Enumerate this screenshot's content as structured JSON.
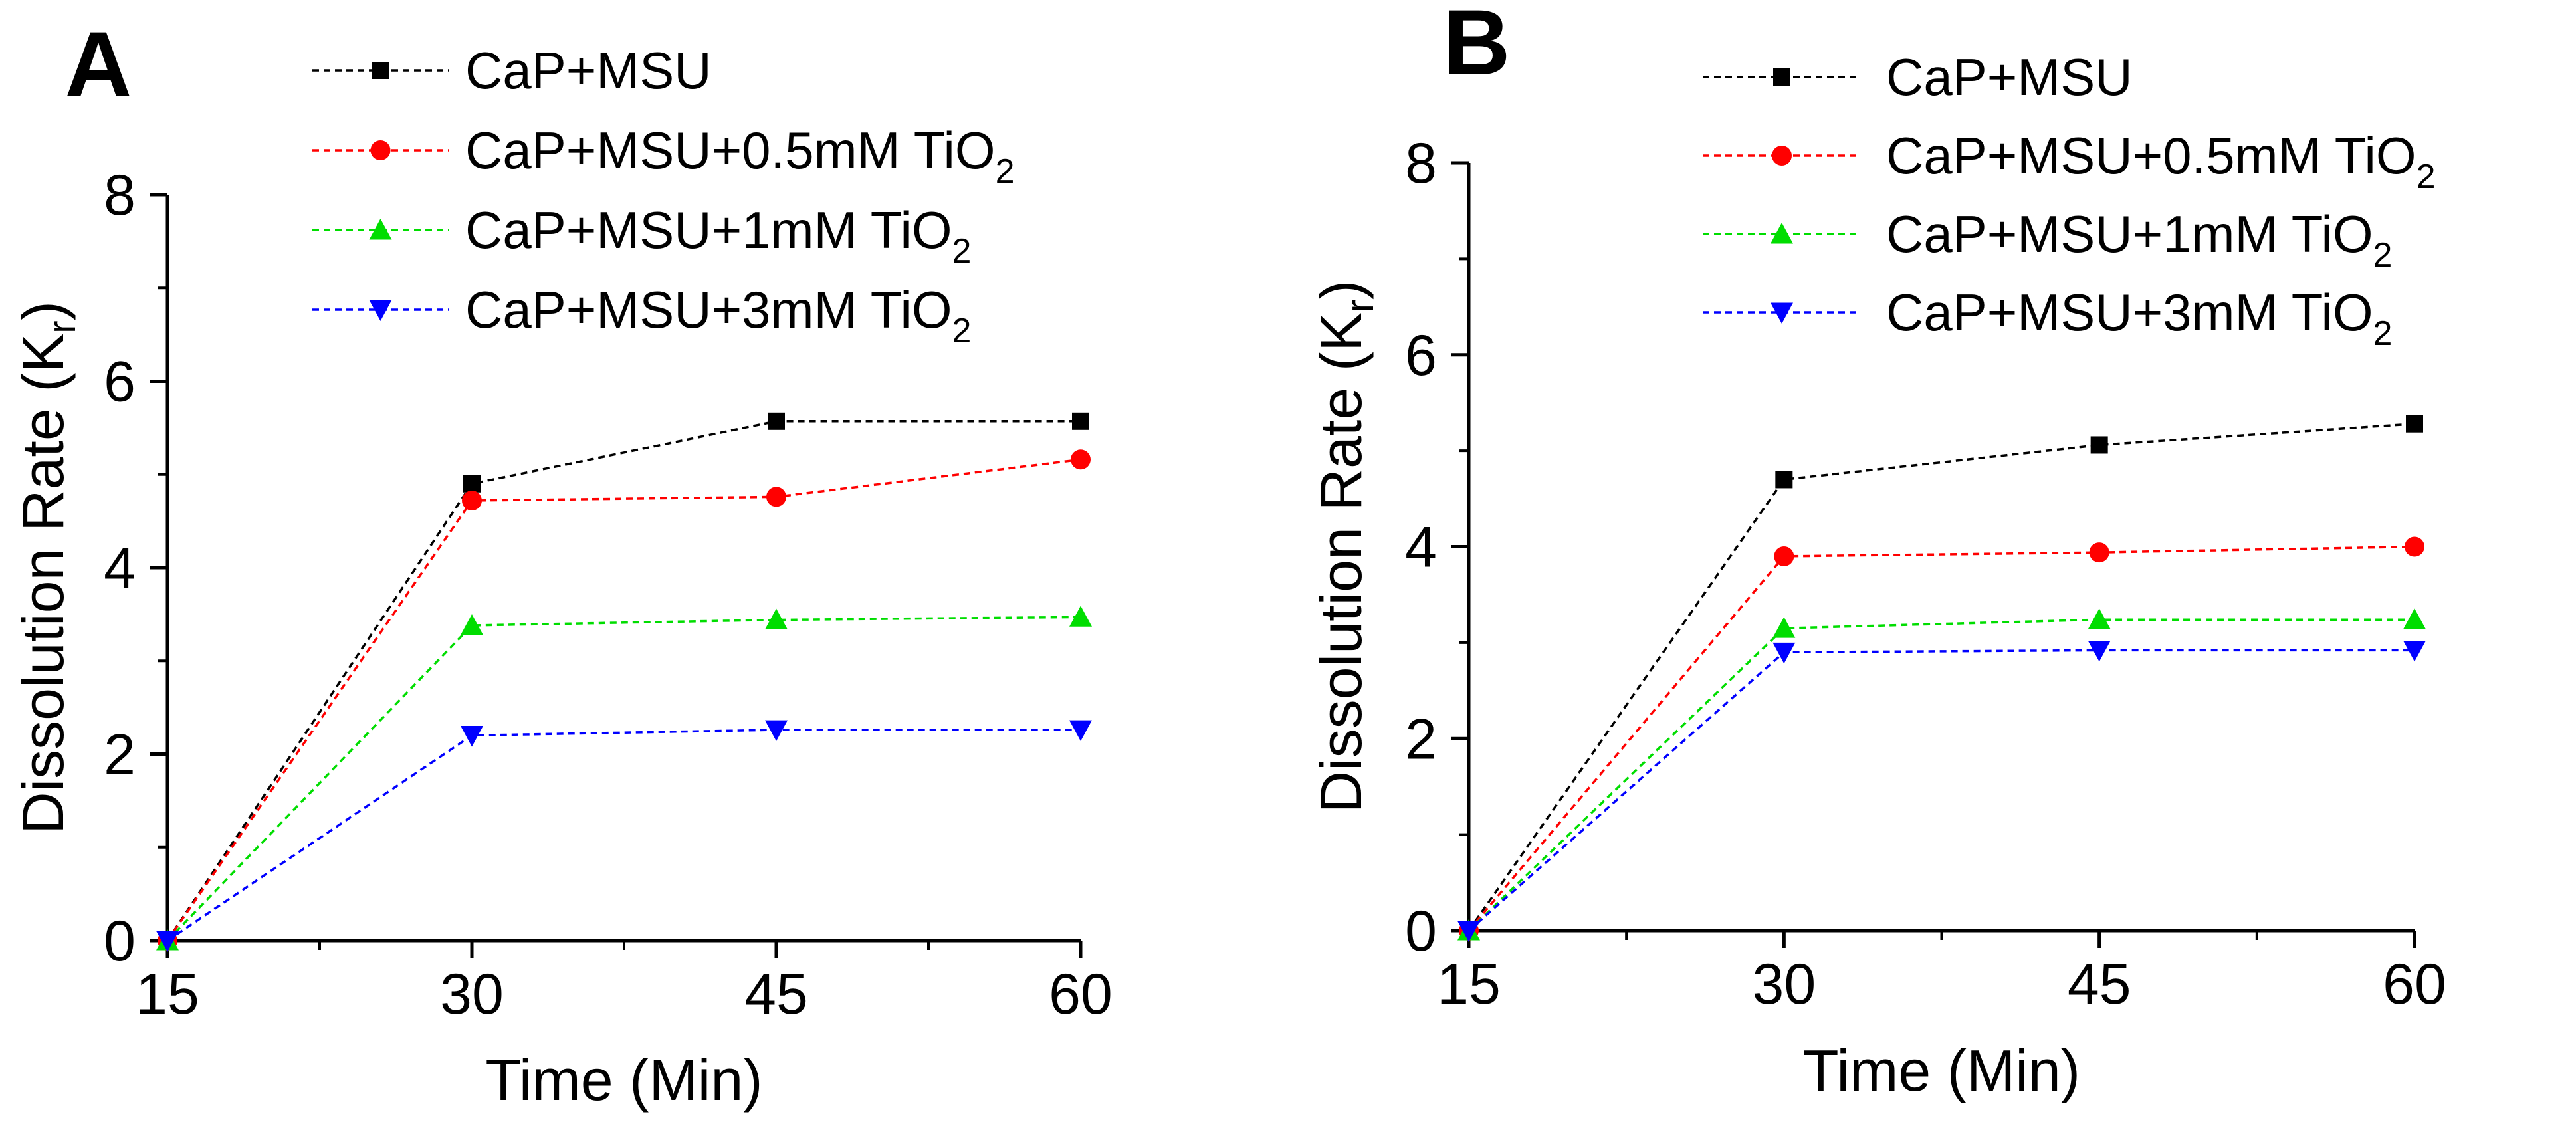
{
  "chart_data": [
    {
      "type": "line",
      "panel_label": "A",
      "title": "",
      "xlabel": "Time (Min)",
      "ylabel": "Dissolution Rate (K",
      "ylabel_sub": "r",
      "ylabel_close": ")",
      "xlim": [
        15,
        60
      ],
      "ylim": [
        0,
        8
      ],
      "x_ticks": [
        15,
        30,
        45,
        60
      ],
      "y_ticks": [
        0,
        2,
        4,
        6,
        8
      ],
      "x_tick_labels": [
        "15",
        "30",
        "45",
        "60"
      ],
      "y_tick_labels": [
        "0",
        "2",
        "4",
        "6",
        "8"
      ],
      "grid": false,
      "legend_position": "top",
      "x": [
        15,
        30,
        45,
        60
      ],
      "series": [
        {
          "name": "CaP+MSU",
          "label_main": "CaP+MSU",
          "label_sub": "",
          "color": "#000000",
          "marker": "square",
          "values": [
            0,
            4.9,
            5.57,
            5.57
          ]
        },
        {
          "name": "CaP+MSU+0.5mM TiO2",
          "label_main": "CaP+MSU+0.5mM TiO",
          "label_sub": "2",
          "color": "#ff0000",
          "marker": "circle",
          "values": [
            0,
            4.72,
            4.76,
            5.16
          ]
        },
        {
          "name": "CaP+MSU+1mM TiO2",
          "label_main": "CaP+MSU+1mM TiO",
          "label_sub": "2",
          "color": "#00dd00",
          "marker": "triangle-up",
          "values": [
            0,
            3.38,
            3.44,
            3.47
          ]
        },
        {
          "name": "CaP+MSU+3mM TiO2",
          "label_main": "CaP+MSU+3mM TiO",
          "label_sub": "2",
          "color": "#0000ff",
          "marker": "triangle-down",
          "values": [
            0,
            2.2,
            2.26,
            2.26
          ]
        }
      ]
    },
    {
      "type": "line",
      "panel_label": "B",
      "title": "",
      "xlabel": "Time (Min)",
      "ylabel": "Dissolution Rate (K",
      "ylabel_sub": "r",
      "ylabel_close": ")",
      "xlim": [
        15,
        60
      ],
      "ylim": [
        0,
        8
      ],
      "x_ticks": [
        15,
        30,
        45,
        60
      ],
      "y_ticks": [
        0,
        2,
        4,
        6,
        8
      ],
      "x_tick_labels": [
        "15",
        "30",
        "45",
        "60"
      ],
      "y_tick_labels": [
        "0",
        "2",
        "4",
        "6",
        "8"
      ],
      "grid": false,
      "legend_position": "top",
      "x": [
        15,
        30,
        45,
        60
      ],
      "series": [
        {
          "name": "CaP+MSU",
          "label_main": "CaP+MSU",
          "label_sub": "",
          "color": "#000000",
          "marker": "square",
          "values": [
            0,
            4.7,
            5.06,
            5.28
          ]
        },
        {
          "name": "CaP+MSU+0.5mM TiO2",
          "label_main": "CaP+MSU+0.5mM TiO",
          "label_sub": "2",
          "color": "#ff0000",
          "marker": "circle",
          "values": [
            0,
            3.9,
            3.94,
            4.0
          ]
        },
        {
          "name": "CaP+MSU+1mM TiO2",
          "label_main": "CaP+MSU+1mM TiO",
          "label_sub": "2",
          "color": "#00dd00",
          "marker": "triangle-up",
          "values": [
            0,
            3.15,
            3.24,
            3.24
          ]
        },
        {
          "name": "CaP+MSU+3mM TiO2",
          "label_main": "CaP+MSU+3mM TiO",
          "label_sub": "2",
          "color": "#0000ff",
          "marker": "triangle-down",
          "values": [
            0,
            2.9,
            2.92,
            2.92
          ]
        }
      ]
    }
  ]
}
